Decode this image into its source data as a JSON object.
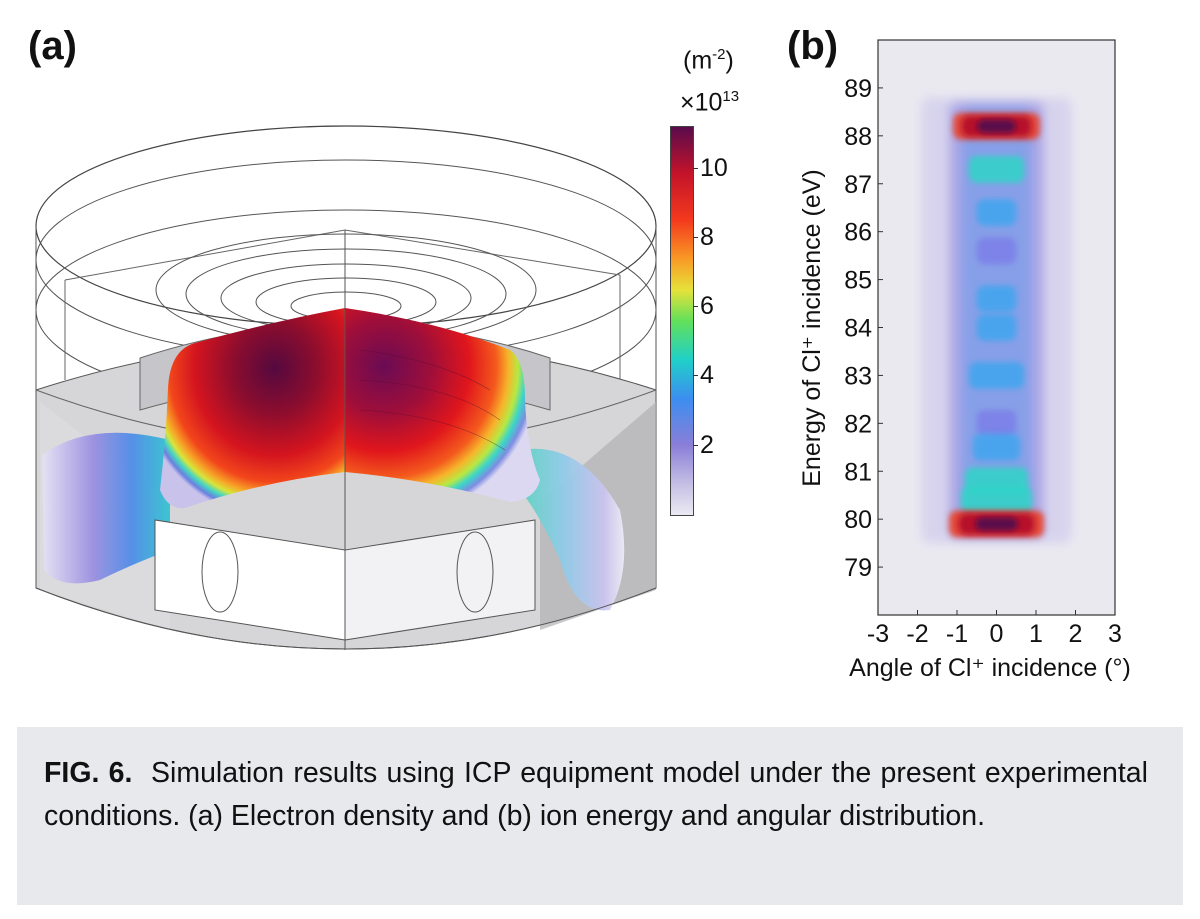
{
  "panel_a": {
    "label": "(a)",
    "colorbar": {
      "unit": "(m",
      "unit_exp": "-2",
      "unit_close": ")",
      "multiplier": "×10",
      "multiplier_exp": "13",
      "ticks": [
        "2",
        "4",
        "6",
        "8",
        "10"
      ],
      "tick_values": [
        2,
        4,
        6,
        8,
        10
      ],
      "range": [
        0,
        11.2
      ],
      "colors": [
        "#eceaf2",
        "#8a7ed8",
        "#3c8ef0",
        "#20d0c8",
        "#62e05a",
        "#e6e23a",
        "#f99a25",
        "#f4391d",
        "#c4132a",
        "#5a0b4c"
      ]
    }
  },
  "chart_data": {
    "type": "heatmap",
    "panel_label": "(b)",
    "xlabel": "Angle of Cl⁺ incidence (°)",
    "ylabel": "Energy of Cl⁺ incidence (eV)",
    "xlim": [
      -3,
      3
    ],
    "ylim": [
      78,
      90
    ],
    "x_ticks": [
      "-3",
      "-2",
      "-1",
      "0",
      "1",
      "2",
      "3"
    ],
    "y_ticks": [
      "79",
      "80",
      "81",
      "82",
      "83",
      "84",
      "85",
      "86",
      "87",
      "88",
      "89"
    ],
    "grid": false,
    "colormap": "same as colorbar in (a)",
    "peaks": [
      {
        "energy": 88.2,
        "intensity": 1.0,
        "width": 1.1
      },
      {
        "energy": 87.3,
        "intensity": 0.45,
        "width": 0.7
      },
      {
        "energy": 86.4,
        "intensity": 0.35,
        "width": 0.5
      },
      {
        "energy": 85.6,
        "intensity": 0.2,
        "width": 0.5
      },
      {
        "energy": 84.6,
        "intensity": 0.38,
        "width": 0.5
      },
      {
        "energy": 84.0,
        "intensity": 0.38,
        "width": 0.5
      },
      {
        "energy": 83.0,
        "intensity": 0.4,
        "width": 0.7
      },
      {
        "energy": 82.0,
        "intensity": 0.3,
        "width": 0.5
      },
      {
        "energy": 81.5,
        "intensity": 0.35,
        "width": 0.6
      },
      {
        "energy": 80.8,
        "intensity": 0.5,
        "width": 0.8
      },
      {
        "energy": 80.4,
        "intensity": 0.55,
        "width": 0.9
      },
      {
        "energy": 79.9,
        "intensity": 1.0,
        "width": 1.2
      }
    ]
  },
  "caption": {
    "fig": "FIG. 6.",
    "text": "Simulation results using ICP equipment model under the present experimental conditions. (a) Electron density and (b) ion energy and angular distribution."
  }
}
